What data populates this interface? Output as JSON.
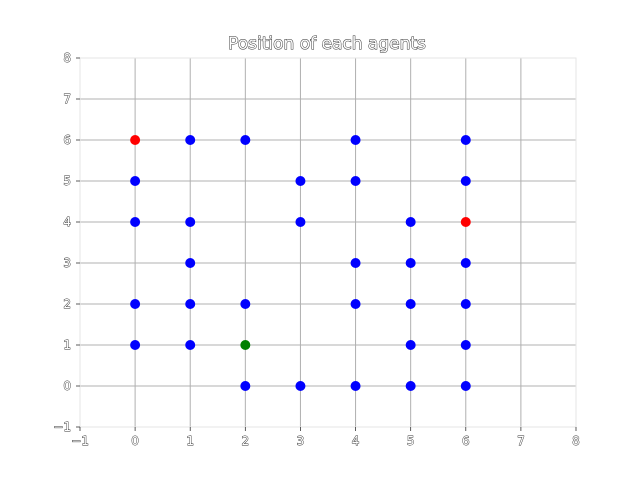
{
  "chart_data": {
    "type": "scatter",
    "title": "Position of each agents",
    "xlabel": "",
    "ylabel": "",
    "xlim": [
      -1,
      8
    ],
    "ylim": [
      -1,
      8
    ],
    "x_ticks": [
      "−1",
      "0",
      "1",
      "2",
      "3",
      "4",
      "5",
      "6",
      "7",
      "8"
    ],
    "y_ticks": [
      "−1",
      "0",
      "1",
      "2",
      "3",
      "4",
      "5",
      "6",
      "7",
      "8"
    ],
    "grid": true,
    "series": [
      {
        "color": "#0000ff",
        "points": [
          [
            0,
            5
          ],
          [
            0,
            4
          ],
          [
            0,
            2
          ],
          [
            0,
            1
          ],
          [
            1,
            6
          ],
          [
            1,
            4
          ],
          [
            1,
            3
          ],
          [
            1,
            2
          ],
          [
            1,
            1
          ],
          [
            2,
            6
          ],
          [
            2,
            2
          ],
          [
            2,
            0
          ],
          [
            3,
            5
          ],
          [
            3,
            4
          ],
          [
            3,
            0
          ],
          [
            4,
            6
          ],
          [
            4,
            5
          ],
          [
            4,
            3
          ],
          [
            4,
            2
          ],
          [
            4,
            0
          ],
          [
            5,
            4
          ],
          [
            5,
            3
          ],
          [
            5,
            2
          ],
          [
            5,
            1
          ],
          [
            5,
            0
          ],
          [
            6,
            6
          ],
          [
            6,
            5
          ],
          [
            6,
            3
          ],
          [
            6,
            2
          ],
          [
            6,
            1
          ],
          [
            6,
            0
          ]
        ]
      },
      {
        "color": "#ff0000",
        "points": [
          [
            0,
            6
          ],
          [
            6,
            4
          ]
        ]
      },
      {
        "color": "#008000",
        "points": [
          [
            2,
            1
          ]
        ]
      }
    ]
  }
}
